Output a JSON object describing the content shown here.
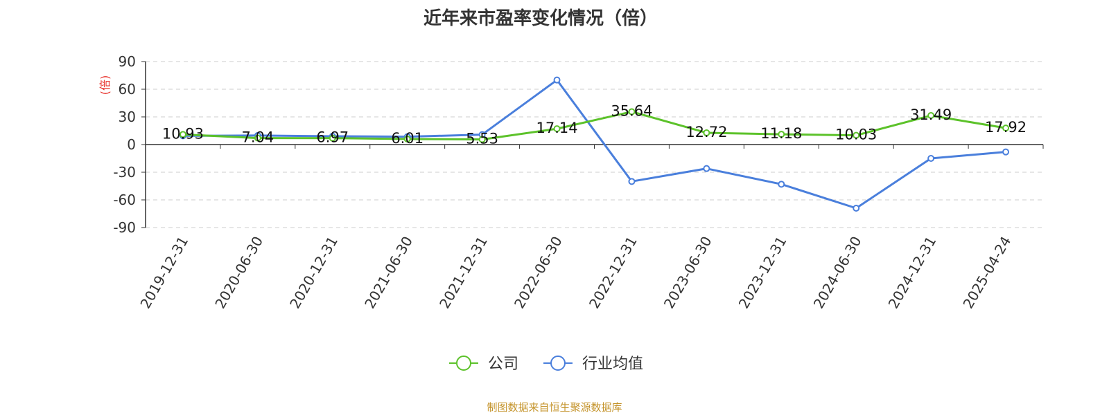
{
  "chart_data": {
    "type": "line",
    "title": "近年来市盈率变化情况（倍）",
    "ylabel": "(倍)",
    "xlabel": "",
    "categories": [
      "2019-12-31",
      "2020-06-30",
      "2020-12-31",
      "2021-06-30",
      "2021-12-31",
      "2022-06-30",
      "2022-12-31",
      "2023-06-30",
      "2023-12-31",
      "2024-06-30",
      "2024-12-31",
      "2025-04-24"
    ],
    "ylim": [
      -90,
      90
    ],
    "yticks": [
      90,
      60,
      30,
      0,
      -30,
      -60,
      -90
    ],
    "grid": true,
    "legend_position": "bottom-center",
    "series": [
      {
        "name": "公司",
        "color": "#5cc22a",
        "values": [
          10.93,
          7.04,
          6.97,
          6.01,
          5.53,
          17.14,
          35.64,
          12.72,
          11.18,
          10.03,
          31.49,
          17.92
        ],
        "labels": [
          "10.93",
          "7.04",
          "6.97",
          "6.01",
          "5.53",
          "17.14",
          "35.64",
          "12.72",
          "11.18",
          "10.03",
          "31.49",
          "17.92"
        ]
      },
      {
        "name": "行业均值",
        "color": "#4a7fdc",
        "values": [
          9.5,
          9.8,
          9.0,
          8.5,
          10.8,
          70.0,
          -40.0,
          -26.0,
          -43.0,
          -69.0,
          -15.0,
          -8.0
        ]
      }
    ]
  },
  "source": "制图数据来自恒生聚源数据库"
}
